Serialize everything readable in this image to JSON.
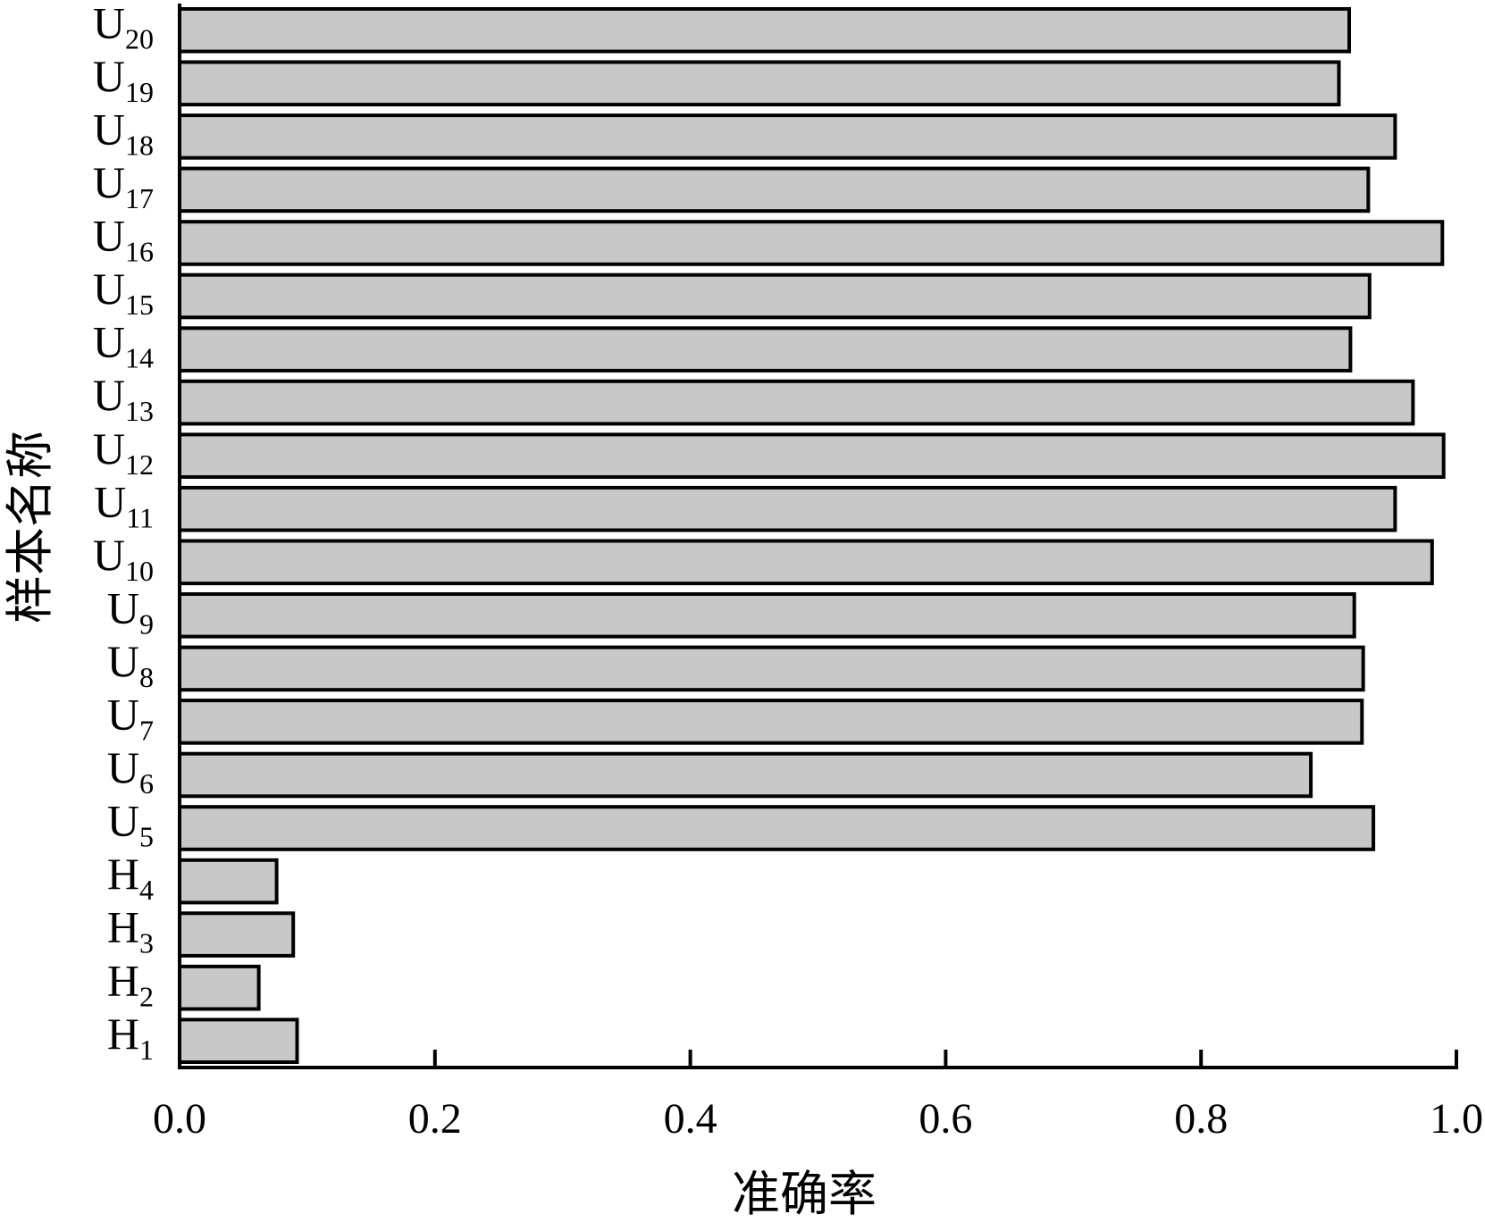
{
  "chart_data": {
    "type": "bar",
    "orientation": "horizontal",
    "title": "",
    "xlabel": "准确率",
    "ylabel": "样本名称",
    "xlim": [
      0.0,
      1.0
    ],
    "x_ticks": [
      "0.0",
      "0.2",
      "0.4",
      "0.6",
      "0.8",
      "1.0"
    ],
    "grid": false,
    "legend": "none",
    "colors": {
      "bar_fill": "#c8c8c8",
      "bar_edge": "#000000",
      "axis": "#000000"
    },
    "categories": [
      {
        "base": "H",
        "sub": "1"
      },
      {
        "base": "H",
        "sub": "2"
      },
      {
        "base": "H",
        "sub": "3"
      },
      {
        "base": "H",
        "sub": "4"
      },
      {
        "base": "U",
        "sub": "5"
      },
      {
        "base": "U",
        "sub": "6"
      },
      {
        "base": "U",
        "sub": "7"
      },
      {
        "base": "U",
        "sub": "8"
      },
      {
        "base": "U",
        "sub": "9"
      },
      {
        "base": "U",
        "sub": "10"
      },
      {
        "base": "U",
        "sub": "11"
      },
      {
        "base": "U",
        "sub": "12"
      },
      {
        "base": "U",
        "sub": "13"
      },
      {
        "base": "U",
        "sub": "14"
      },
      {
        "base": "U",
        "sub": "15"
      },
      {
        "base": "U",
        "sub": "16"
      },
      {
        "base": "U",
        "sub": "17"
      },
      {
        "base": "U",
        "sub": "18"
      },
      {
        "base": "U",
        "sub": "19"
      },
      {
        "base": "U",
        "sub": "20"
      }
    ],
    "values": [
      0.092,
      0.062,
      0.089,
      0.076,
      0.935,
      0.886,
      0.926,
      0.927,
      0.92,
      0.981,
      0.952,
      0.99,
      0.966,
      0.917,
      0.932,
      0.989,
      0.931,
      0.952,
      0.908,
      0.916
    ]
  }
}
